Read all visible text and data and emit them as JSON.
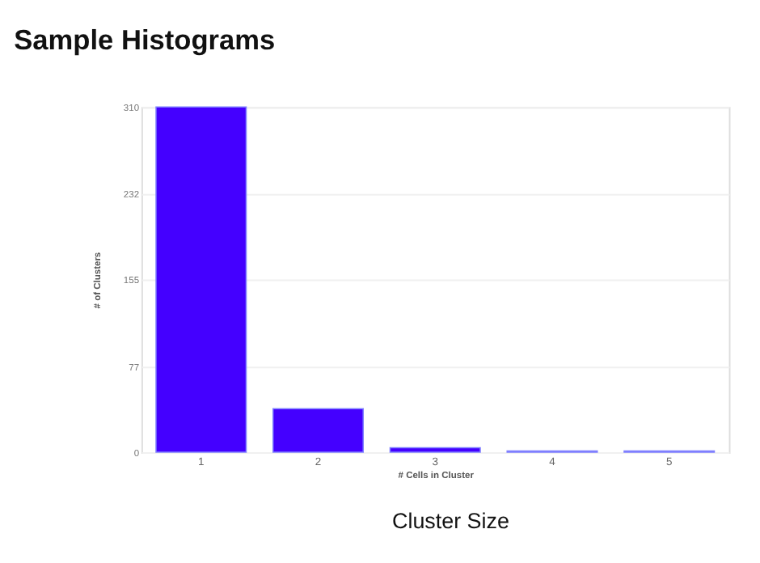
{
  "chart_data": {
    "type": "bar",
    "title": "Sample Histograms",
    "xlabel": "# Cells in Cluster",
    "ylabel": "# of Clusters",
    "categories": [
      "1",
      "2",
      "3",
      "4",
      "5"
    ],
    "values": [
      310,
      39,
      4,
      1,
      1
    ],
    "color": "#4400ff",
    "ylim": [
      0,
      310
    ],
    "yticks": [
      0,
      77,
      155,
      232,
      310
    ],
    "grid": "y",
    "annotations": [
      "Cluster Size"
    ]
  }
}
